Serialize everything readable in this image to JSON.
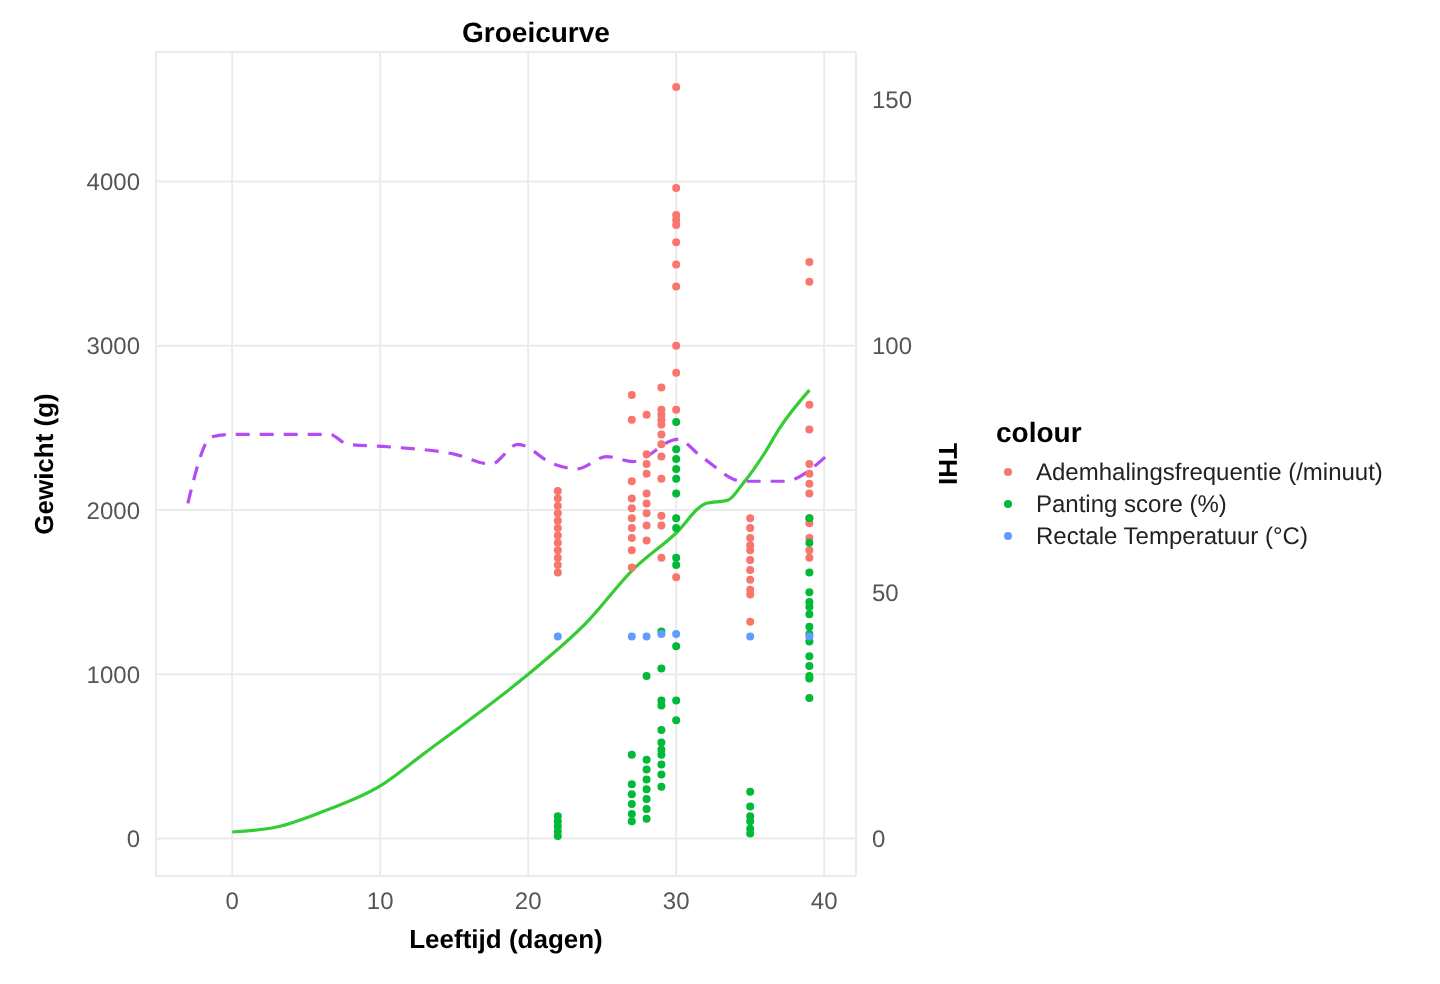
{
  "chart_data": {
    "type": "scatter",
    "title": "Groeicurve",
    "xlabel": "Leeftijd (dagen)",
    "ylabel": "Gewicht (g)",
    "y2label": "THI",
    "legend_title": "colour",
    "legend": "right",
    "grid": true,
    "xlim": [
      -5.15,
      42.15
    ],
    "xticks": [
      0,
      10,
      20,
      30,
      40
    ],
    "ylim": [
      -228,
      4788
    ],
    "yticks": [
      0,
      1000,
      2000,
      3000,
      4000
    ],
    "y2lim": [
      -7.6,
      159.6
    ],
    "y2ticks": [
      0,
      50,
      100,
      150
    ],
    "series": [
      {
        "type": "line",
        "marker": "none",
        "color": "#33cc33",
        "line_style": "solid",
        "x": [
          0,
          3,
          6,
          10,
          13,
          16,
          20,
          24,
          27,
          30,
          32,
          33.5,
          34.5,
          36,
          37,
          39
        ],
        "values": [
          40,
          70,
          160,
          320,
          520,
          720,
          1000,
          1320,
          1630,
          1860,
          2040,
          2060,
          2160,
          2350,
          2500,
          2730
        ]
      },
      {
        "type": "line",
        "marker": "none",
        "axis": "y2",
        "color": "#b44cf5",
        "line_style": "dashed",
        "x": [
          -3,
          -1.4,
          -0.2,
          6.6,
          7.8,
          10.5,
          15,
          17.5,
          19.3,
          21.7,
          23.3,
          25.3,
          27.1,
          30.1,
          31.7,
          34.5,
          37.3,
          40.1
        ],
        "values": [
          68,
          81.5,
          82,
          82,
          80,
          79.5,
          78,
          76,
          80,
          76,
          75,
          77.5,
          76.5,
          81,
          77.5,
          72.5,
          72.5,
          77.5
        ]
      },
      {
        "name": "Ademhalingsfrequentie (/minuut)",
        "type": "scatter",
        "marker": "circle",
        "axis": "y2",
        "color": "#f8766d",
        "x": [
          22,
          22,
          22,
          22,
          22,
          22,
          22,
          22,
          22,
          22,
          22,
          22,
          27,
          27,
          27,
          27,
          27,
          27,
          27,
          27,
          27,
          27,
          28,
          28,
          28,
          28,
          28,
          28,
          28,
          28,
          28,
          29,
          29,
          29,
          29,
          29,
          29,
          29,
          29,
          29,
          29,
          29,
          29,
          30,
          30,
          30,
          30,
          30,
          30,
          30,
          30,
          30,
          30,
          30,
          30,
          35,
          35,
          35,
          35,
          35,
          35,
          35,
          35,
          35,
          35,
          35,
          39,
          39,
          39,
          39,
          39,
          39,
          39,
          39,
          39,
          39,
          39,
          39,
          39
        ],
        "values": [
          70.5,
          69,
          67.5,
          66,
          64.5,
          63,
          61.5,
          60,
          58.5,
          57,
          55.5,
          54,
          90,
          85,
          72.5,
          69,
          67,
          65,
          63,
          61,
          58.5,
          55,
          86,
          78,
          76,
          74,
          70,
          68,
          66,
          63.5,
          60.5,
          91.5,
          87,
          86,
          85,
          84,
          82,
          80,
          77.5,
          73,
          65.5,
          63.5,
          57,
          152.5,
          132,
          126.5,
          125.5,
          124.5,
          121,
          116.5,
          112,
          100,
          94.5,
          87,
          53,
          65,
          63,
          61,
          59.5,
          58.5,
          56.5,
          54.5,
          52.5,
          50.5,
          49.5,
          44,
          117,
          113,
          88,
          83,
          76,
          74,
          72,
          70,
          65,
          64,
          61,
          58.5,
          57
        ]
      },
      {
        "name": "Panting score (%)",
        "type": "scatter",
        "marker": "circle",
        "axis": "y2",
        "color": "#00ba38",
        "x": [
          22,
          22,
          22,
          22,
          22,
          27,
          27,
          27,
          27,
          27,
          27,
          28,
          28,
          28,
          28,
          28,
          28,
          28,
          28,
          29,
          29,
          29,
          29,
          29,
          29,
          29,
          29,
          29,
          29,
          29,
          30,
          30,
          30,
          30,
          30,
          30,
          30,
          30,
          30,
          30,
          30,
          30,
          30,
          35,
          35,
          35,
          35,
          35,
          35,
          39,
          39,
          39,
          39,
          39,
          39,
          39,
          39,
          39,
          39,
          39,
          39,
          39,
          39,
          39
        ],
        "values": [
          4.5,
          3.5,
          2.5,
          1.5,
          0.5,
          17,
          11,
          9,
          7,
          5,
          3.5,
          33,
          16,
          14,
          12,
          10,
          8,
          6,
          4,
          42,
          34.5,
          28,
          27,
          22,
          19.5,
          18,
          17,
          15,
          13,
          10.5,
          84.5,
          79,
          77,
          75,
          73,
          70,
          65,
          63,
          57,
          55.5,
          39,
          28,
          24,
          9.5,
          6.5,
          4.5,
          3.5,
          2,
          1,
          65,
          60,
          54,
          50,
          48,
          47,
          45.5,
          43,
          41.5,
          40,
          37,
          35,
          33,
          32.5,
          28.5
        ]
      },
      {
        "name": "Rectale Temperatuur (°C)",
        "type": "scatter",
        "marker": "circle",
        "axis": "y2",
        "color": "#619cff",
        "x": [
          22,
          27,
          28,
          29,
          30,
          35,
          39
        ],
        "values": [
          41,
          41,
          41,
          41.5,
          41.5,
          41,
          41
        ]
      }
    ]
  }
}
